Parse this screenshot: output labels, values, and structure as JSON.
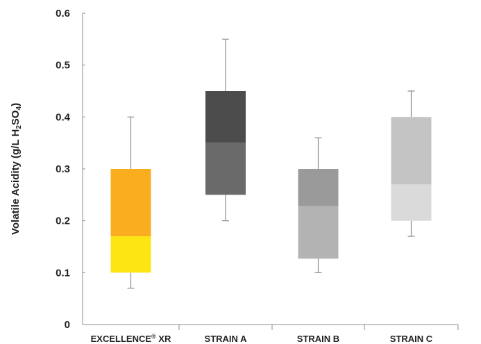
{
  "chart_data": {
    "type": "boxplot",
    "ylabel": {
      "prefix": "Volatile Acidity (g/L H",
      "sub1": "2",
      "mid": "SO",
      "sub2": "4",
      "suffix": ")"
    },
    "ylim": [
      0,
      0.6
    ],
    "yticks": [
      "0",
      "0.1",
      "0.2",
      "0.3",
      "0.4",
      "0.5",
      "0.6"
    ],
    "categories": [
      {
        "label_main": "EXCELLENCE",
        "label_sup": "®",
        "label_rest": " XR"
      },
      {
        "label_main": "STRAIN A",
        "label_sup": "",
        "label_rest": ""
      },
      {
        "label_main": "STRAIN B",
        "label_sup": "",
        "label_rest": ""
      },
      {
        "label_main": "STRAIN C",
        "label_sup": "",
        "label_rest": ""
      }
    ],
    "boxes": [
      {
        "min": 0.07,
        "q1": 0.1,
        "median": 0.17,
        "q3": 0.3,
        "max": 0.4,
        "lower_color": "#fde514",
        "upper_color": "#f9ad1f"
      },
      {
        "min": 0.2,
        "q1": 0.25,
        "median": 0.35,
        "q3": 0.45,
        "max": 0.55,
        "lower_color": "#6a6a6a",
        "upper_color": "#4c4c4c"
      },
      {
        "min": 0.1,
        "q1": 0.127,
        "median": 0.228,
        "q3": 0.3,
        "max": 0.36,
        "lower_color": "#b3b3b3",
        "upper_color": "#9a9a9a"
      },
      {
        "min": 0.17,
        "q1": 0.2,
        "median": 0.27,
        "q3": 0.4,
        "max": 0.45,
        "lower_color": "#dadada",
        "upper_color": "#c4c4c4"
      }
    ],
    "grid": false,
    "legend": "none"
  },
  "colors": {
    "axis": "#8c8c8c",
    "whisker": "#8c8c8c",
    "text": "#231f20"
  }
}
